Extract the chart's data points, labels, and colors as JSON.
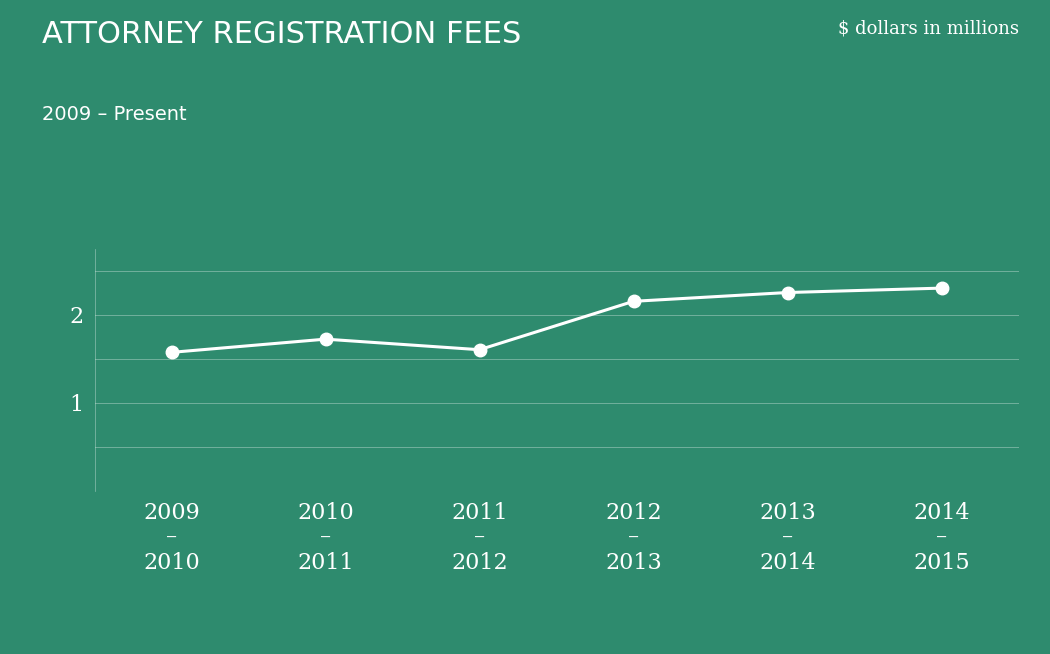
{
  "title": "ATTORNEY REGISTRATION FEES",
  "subtitle": "2009 – Present",
  "subtitle2": "$ dollars in millions",
  "background_color": "#2e8b6e",
  "line_color": "#ffffff",
  "text_color": "#ffffff",
  "grid_color": "#ffffff",
  "x_labels": [
    "2009\n–\n2010",
    "2010\n–\n2011",
    "2011\n–\n2012",
    "2012\n–\n2013",
    "2013\n–\n2014",
    "2014\n–\n2015"
  ],
  "x_values": [
    0,
    1,
    2,
    3,
    4,
    5
  ],
  "y_values": [
    1.57,
    1.72,
    1.6,
    2.15,
    2.25,
    2.3
  ],
  "ylim": [
    0,
    2.75
  ],
  "yticks": [
    0,
    0.5,
    1.0,
    1.5,
    2.0,
    2.5
  ],
  "ytick_labels": [
    "",
    "",
    "1",
    "",
    "2",
    ""
  ],
  "title_fontsize": 22,
  "subtitle_fontsize": 14,
  "subtitle2_fontsize": 13,
  "tick_fontsize": 16,
  "marker_size": 9,
  "line_width": 2.2
}
